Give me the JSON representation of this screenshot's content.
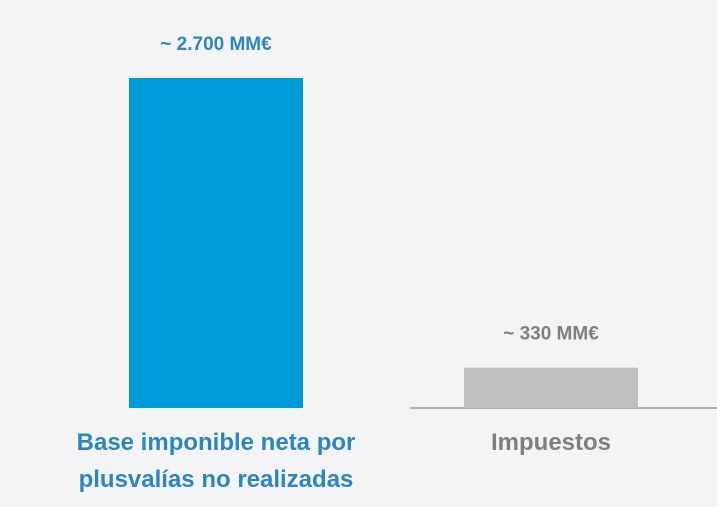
{
  "chart_data": {
    "type": "bar",
    "categories": [
      "Base imponible neta por plusvalías no realizadas",
      "Impuestos"
    ],
    "values": [
      2700,
      330
    ],
    "value_labels": [
      "~ 2.700 MM€",
      "~ 330 MM€"
    ],
    "colors": [
      "#009ad9",
      "#bfbfbf"
    ],
    "label_colors": [
      "#2e85bd",
      "#7f7f7f"
    ]
  }
}
